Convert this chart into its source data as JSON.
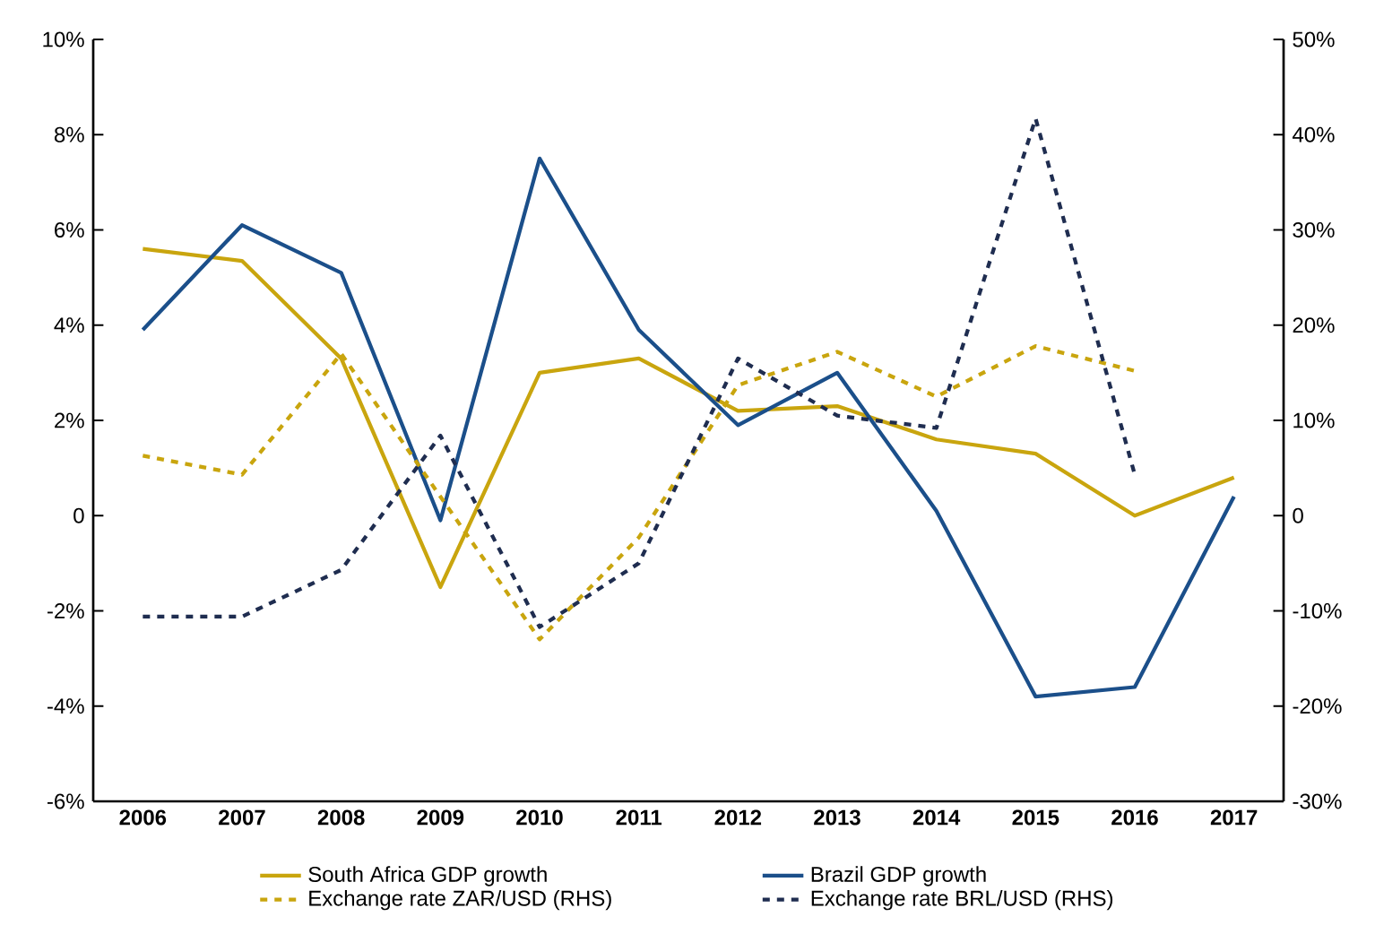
{
  "chart_data": {
    "type": "line",
    "categories": [
      "2006",
      "2007",
      "2008",
      "2009",
      "2010",
      "2011",
      "2012",
      "2013",
      "2014",
      "2015",
      "2016",
      "2017"
    ],
    "ylim": [
      -6,
      10
    ],
    "yticks": [
      {
        "value": -6,
        "label": "-6%"
      },
      {
        "value": -4,
        "label": "-4%"
      },
      {
        "value": -2,
        "label": "-2%"
      },
      0,
      {
        "value": 2,
        "label": "2%"
      },
      {
        "value": 4,
        "label": "4%"
      },
      {
        "value": 6,
        "label": "6%"
      },
      {
        "value": 8,
        "label": "8%"
      },
      {
        "value": 10,
        "label": "10%"
      }
    ],
    "y2lim": [
      -30,
      50
    ],
    "y2ticks": [
      {
        "value": -30,
        "label": "-30%"
      },
      {
        "value": -20,
        "label": "-20%"
      },
      {
        "value": -10,
        "label": "-10%"
      },
      0,
      {
        "value": 10,
        "label": "10%"
      },
      {
        "value": 20,
        "label": "20%"
      },
      {
        "value": 30,
        "label": "30%"
      },
      {
        "value": 40,
        "label": "40%"
      },
      {
        "value": 50,
        "label": "50%"
      }
    ],
    "grid": false,
    "legend": "bottom",
    "series": [
      {
        "name": "South Africa GDP growth",
        "color": "#c9a50e",
        "line_style": "solid",
        "values": [
          5.6,
          5.35,
          3.3,
          -1.5,
          3.0,
          3.3,
          2.2,
          2.3,
          1.6,
          1.3,
          0,
          0.8
        ]
      },
      {
        "name": "Brazil GDP growth",
        "color": "#1b4f8a",
        "line_style": "solid",
        "values": [
          3.9,
          6.1,
          5.1,
          -0.1,
          7.5,
          3.9,
          1.9,
          3.0,
          0.1,
          -3.8,
          -3.6,
          0.4
        ]
      },
      {
        "name": "Exchange rate ZAR/USD (RHS)",
        "color": "#c9a50e",
        "line_style": "dashed",
        "axis": "y2",
        "values": [
          6.3,
          4.3,
          17,
          2,
          -13,
          -2.3,
          13.7,
          17.2,
          12.5,
          17.8,
          15.2,
          null
        ]
      },
      {
        "name": "Exchange rate BRL/USD (RHS)",
        "color": "#1f2d50",
        "line_style": "dashed",
        "axis": "y2",
        "values": [
          -10.6,
          -10.6,
          -5.7,
          8.4,
          -11.7,
          -5,
          16.5,
          10.5,
          9.2,
          41.7,
          4.3,
          null
        ]
      }
    ]
  }
}
